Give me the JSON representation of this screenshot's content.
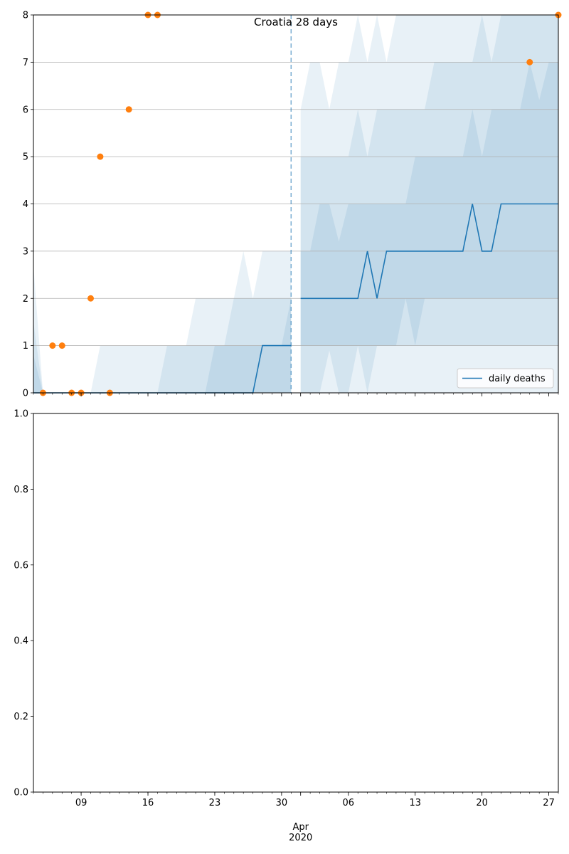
{
  "chart_data": [
    {
      "type": "line",
      "title": "Croatia 28 days",
      "xlabel": "",
      "ylabel": "",
      "x_range": [
        "2020-03-04",
        "2020-04-28"
      ],
      "ylim": [
        0,
        8
      ],
      "y_ticks": [
        0,
        1,
        2,
        3,
        4,
        5,
        6,
        7,
        8
      ],
      "x_ticks": [
        "09",
        "16",
        "23",
        "30",
        "Apr\n2020",
        "06",
        "13",
        "20",
        "27"
      ],
      "x_tick_dates": [
        "2020-03-09",
        "2020-03-16",
        "2020-03-23",
        "2020-03-30",
        "2020-04-01",
        "2020-04-06",
        "2020-04-13",
        "2020-04-20",
        "2020-04-27"
      ],
      "grid": "horizontal",
      "legend_position": "lower-right",
      "legend": [
        "daily deaths"
      ],
      "forecast_start": "2020-03-31",
      "colors": {
        "line": "#1f77b4",
        "observed": "#ff7f0e",
        "band": "#1f77b4",
        "grid": "#b0b0b0"
      },
      "series": [
        {
          "name": "daily deaths",
          "kind": "line",
          "segments": [
            {
              "x": [
                "2020-03-04",
                "2020-03-05",
                "2020-03-06",
                "2020-03-07",
                "2020-03-08",
                "2020-03-09",
                "2020-03-10",
                "2020-03-11",
                "2020-03-12",
                "2020-03-13",
                "2020-03-14",
                "2020-03-15",
                "2020-03-16",
                "2020-03-17",
                "2020-03-18",
                "2020-03-19",
                "2020-03-20",
                "2020-03-21",
                "2020-03-22",
                "2020-03-23",
                "2020-03-24",
                "2020-03-25",
                "2020-03-26",
                "2020-03-27",
                "2020-03-28",
                "2020-03-29",
                "2020-03-30",
                "2020-03-31"
              ],
              "y": [
                0,
                0,
                0,
                0,
                0,
                0,
                0,
                0,
                0,
                0,
                0,
                0,
                0,
                0,
                0,
                0,
                0,
                0,
                0,
                0,
                0,
                0,
                0,
                0,
                1,
                1,
                1,
                1
              ]
            },
            {
              "x": [
                "2020-04-01",
                "2020-04-02",
                "2020-04-03",
                "2020-04-04",
                "2020-04-05",
                "2020-04-06",
                "2020-04-07",
                "2020-04-08",
                "2020-04-09",
                "2020-04-10",
                "2020-04-11",
                "2020-04-12",
                "2020-04-13",
                "2020-04-14",
                "2020-04-15",
                "2020-04-16",
                "2020-04-17",
                "2020-04-18",
                "2020-04-19",
                "2020-04-20",
                "2020-04-21",
                "2020-04-22",
                "2020-04-23",
                "2020-04-24",
                "2020-04-25",
                "2020-04-26",
                "2020-04-27",
                "2020-04-28"
              ],
              "y": [
                2,
                2,
                2,
                2,
                2,
                2,
                2,
                3,
                2,
                3,
                3,
                3,
                3,
                3,
                3,
                3,
                3,
                3,
                4,
                3,
                3,
                4,
                4,
                4,
                4,
                4,
                4,
                4
              ]
            }
          ]
        },
        {
          "name": "",
          "kind": "scatter",
          "x": [
            "2020-03-05",
            "2020-03-06",
            "2020-03-07",
            "2020-03-08",
            "2020-03-09",
            "2020-03-10",
            "2020-03-11",
            "2020-03-12",
            "2020-03-14",
            "2020-03-16",
            "2020-03-17",
            "2020-04-25",
            "2020-04-28"
          ],
          "y": [
            0,
            1,
            1,
            0,
            0,
            2,
            5,
            0,
            6,
            8,
            8,
            7,
            8
          ]
        }
      ],
      "bands": [
        {
          "x": [
            "2020-03-04",
            "2020-03-05",
            "2020-03-06",
            "2020-03-07",
            "2020-03-08",
            "2020-03-09",
            "2020-03-10",
            "2020-03-11",
            "2020-03-12",
            "2020-03-13",
            "2020-03-14",
            "2020-03-15",
            "2020-03-16",
            "2020-03-17",
            "2020-03-18",
            "2020-03-19",
            "2020-03-20",
            "2020-03-21",
            "2020-03-22",
            "2020-03-23",
            "2020-03-24",
            "2020-03-25",
            "2020-03-26",
            "2020-03-27",
            "2020-03-28",
            "2020-03-29",
            "2020-03-30",
            "2020-03-31"
          ],
          "low": [
            0,
            0,
            0,
            0,
            0,
            0,
            0,
            0,
            0,
            0,
            0,
            0,
            0,
            0,
            0,
            0,
            0,
            0,
            0,
            0,
            0,
            0,
            0,
            0,
            0,
            0,
            0,
            0
          ],
          "high": [
            2.7,
            0,
            0,
            0,
            0,
            0,
            0,
            1,
            1,
            1,
            1,
            1,
            1,
            1,
            1,
            1,
            1,
            2,
            2,
            2,
            2,
            2,
            3,
            2,
            3,
            3,
            3,
            3
          ]
        },
        {
          "x": [
            "2020-03-04",
            "2020-03-05",
            "2020-03-06",
            "2020-03-07",
            "2020-03-08",
            "2020-03-09",
            "2020-03-10",
            "2020-03-11",
            "2020-03-12",
            "2020-03-13",
            "2020-03-14",
            "2020-03-15",
            "2020-03-16",
            "2020-03-17",
            "2020-03-18",
            "2020-03-19",
            "2020-03-20",
            "2020-03-21",
            "2020-03-22",
            "2020-03-23",
            "2020-03-24",
            "2020-03-25",
            "2020-03-26",
            "2020-03-27",
            "2020-03-28",
            "2020-03-29",
            "2020-03-30",
            "2020-03-31"
          ],
          "low": [
            0,
            0,
            0,
            0,
            0,
            0,
            0,
            0,
            0,
            0,
            0,
            0,
            0,
            0,
            0,
            0,
            0,
            0,
            0,
            0,
            0,
            0,
            0,
            0,
            0,
            0,
            0,
            0
          ],
          "high": [
            1.5,
            0,
            0,
            0,
            0,
            0,
            0,
            0,
            0,
            0,
            0,
            0,
            0,
            0,
            1,
            1,
            1,
            1,
            1,
            1,
            1,
            2,
            2,
            2,
            2,
            2,
            2,
            2
          ]
        },
        {
          "x": [
            "2020-03-04",
            "2020-03-05",
            "2020-03-06",
            "2020-03-07",
            "2020-03-08",
            "2020-03-09",
            "2020-03-10",
            "2020-03-11",
            "2020-03-12",
            "2020-03-13",
            "2020-03-14",
            "2020-03-15",
            "2020-03-16",
            "2020-03-17",
            "2020-03-18",
            "2020-03-19",
            "2020-03-20",
            "2020-03-21",
            "2020-03-22",
            "2020-03-23",
            "2020-03-24",
            "2020-03-25",
            "2020-03-26",
            "2020-03-27",
            "2020-03-28",
            "2020-03-29",
            "2020-03-30",
            "2020-03-31"
          ],
          "low": [
            0,
            0,
            0,
            0,
            0,
            0,
            0,
            0,
            0,
            0,
            0,
            0,
            0,
            0,
            0,
            0,
            0,
            0,
            0,
            0,
            0,
            0,
            0,
            0,
            0,
            0,
            0,
            0
          ],
          "high": [
            0.8,
            0,
            0,
            0,
            0,
            0,
            0,
            0,
            0,
            0,
            0,
            0,
            0,
            0,
            0,
            0,
            0,
            0,
            0,
            1,
            1,
            1,
            1,
            1,
            1,
            1,
            1,
            2
          ]
        },
        {
          "x": [
            "2020-04-01",
            "2020-04-02",
            "2020-04-03",
            "2020-04-04",
            "2020-04-05",
            "2020-04-06",
            "2020-04-07",
            "2020-04-08",
            "2020-04-09",
            "2020-04-10",
            "2020-04-11",
            "2020-04-12",
            "2020-04-13",
            "2020-04-14",
            "2020-04-15",
            "2020-04-16",
            "2020-04-17",
            "2020-04-18",
            "2020-04-19",
            "2020-04-20",
            "2020-04-21",
            "2020-04-22",
            "2020-04-23",
            "2020-04-24",
            "2020-04-25",
            "2020-04-26",
            "2020-04-27",
            "2020-04-28"
          ],
          "low": [
            0,
            0,
            0,
            0,
            0,
            0,
            0,
            0,
            0,
            0,
            0,
            0,
            0,
            0,
            0,
            0,
            0,
            0,
            0,
            0,
            0,
            0,
            0,
            0,
            0,
            0,
            0,
            0
          ],
          "high": [
            6,
            7,
            7,
            6,
            7,
            7,
            8,
            7,
            8,
            7,
            8,
            8,
            8,
            8,
            8,
            8,
            8,
            8,
            8,
            8,
            8,
            8,
            8,
            8,
            8,
            8,
            8,
            8
          ]
        },
        {
          "x": [
            "2020-04-01",
            "2020-04-02",
            "2020-04-03",
            "2020-04-04",
            "2020-04-05",
            "2020-04-06",
            "2020-04-07",
            "2020-04-08",
            "2020-04-09",
            "2020-04-10",
            "2020-04-11",
            "2020-04-12",
            "2020-04-13",
            "2020-04-14",
            "2020-04-15",
            "2020-04-16",
            "2020-04-17",
            "2020-04-18",
            "2020-04-19",
            "2020-04-20",
            "2020-04-21",
            "2020-04-22",
            "2020-04-23",
            "2020-04-24",
            "2020-04-25",
            "2020-04-26",
            "2020-04-27",
            "2020-04-28"
          ],
          "low": [
            0,
            0,
            0,
            0.9,
            0,
            0,
            1,
            0,
            1,
            1,
            1,
            1,
            1,
            1,
            1,
            1,
            1,
            1,
            1,
            1,
            1,
            1,
            1,
            1,
            1,
            1,
            1,
            1
          ],
          "high": [
            5,
            5,
            5,
            5,
            5,
            5,
            6,
            5,
            6,
            6,
            6,
            6,
            6,
            6,
            7,
            7,
            7,
            7,
            7,
            8,
            7,
            8,
            8,
            8,
            8,
            8,
            8,
            8
          ]
        },
        {
          "x": [
            "2020-04-01",
            "2020-04-02",
            "2020-04-03",
            "2020-04-04",
            "2020-04-05",
            "2020-04-06",
            "2020-04-07",
            "2020-04-08",
            "2020-04-09",
            "2020-04-10",
            "2020-04-11",
            "2020-04-12",
            "2020-04-13",
            "2020-04-14",
            "2020-04-15",
            "2020-04-16",
            "2020-04-17",
            "2020-04-18",
            "2020-04-19",
            "2020-04-20",
            "2020-04-21",
            "2020-04-22",
            "2020-04-23",
            "2020-04-24",
            "2020-04-25",
            "2020-04-26",
            "2020-04-27",
            "2020-04-28"
          ],
          "low": [
            1,
            1,
            1,
            1,
            1,
            1,
            1,
            1,
            1,
            1,
            1,
            2,
            1,
            2,
            2,
            2,
            2,
            2,
            2,
            2,
            2,
            2,
            2,
            2,
            2,
            2,
            2,
            2
          ],
          "high": [
            3,
            3,
            4,
            4,
            3.2,
            4,
            4,
            4,
            4,
            4,
            4,
            4,
            5,
            5,
            5,
            5,
            5,
            5,
            6,
            5,
            6,
            6,
            6,
            6,
            7,
            6.2,
            7,
            7
          ]
        }
      ]
    },
    {
      "type": "line",
      "title": "",
      "xlabel": "",
      "ylabel": "",
      "ylim": [
        0,
        1
      ],
      "y_ticks": [
        "0.0",
        "0.2",
        "0.4",
        "0.6",
        "0.8",
        "1.0"
      ],
      "series": []
    }
  ]
}
